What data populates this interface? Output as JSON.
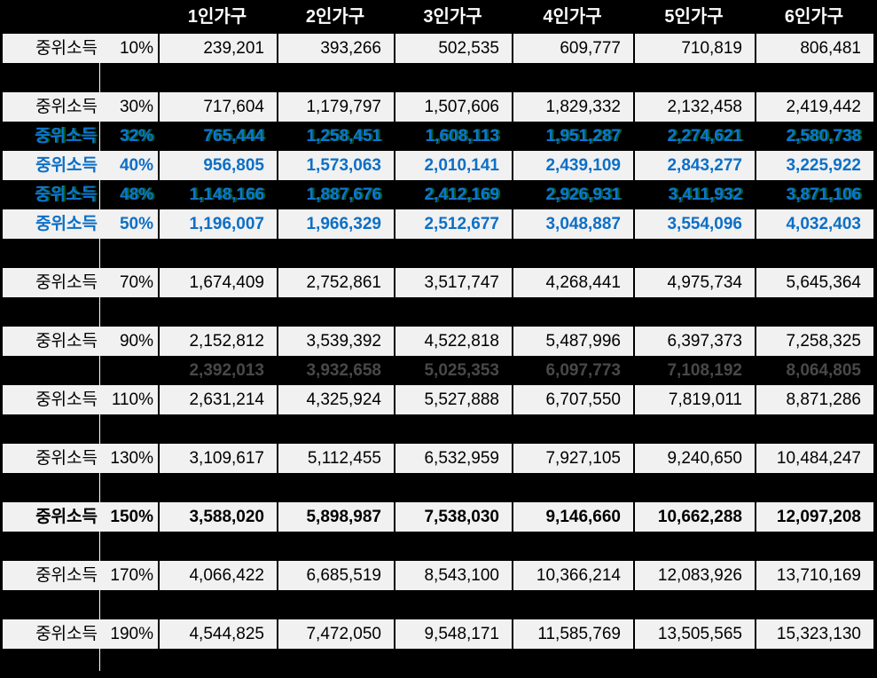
{
  "header": {
    "columns": [
      "1인가구",
      "2인가구",
      "3인가구",
      "4인가구",
      "5인가구",
      "6인가구"
    ]
  },
  "row_label": "중위소득",
  "rows": [
    {
      "kind": "data",
      "style": "normal",
      "label": "중위소득",
      "percent": "10%",
      "values": [
        "239,201",
        "393,266",
        "502,535",
        "609,777",
        "710,819",
        "806,481"
      ]
    },
    {
      "kind": "gap"
    },
    {
      "kind": "data",
      "style": "normal",
      "label": "중위소득",
      "percent": "30%",
      "values": [
        "717,604",
        "1,179,797",
        "1,507,606",
        "1,829,332",
        "2,132,458",
        "2,419,442"
      ]
    },
    {
      "kind": "data",
      "style": "highlight-dark",
      "label": "중위소득",
      "percent": "32%",
      "values": [
        "765,444",
        "1,258,451",
        "1,608,113",
        "1,951,287",
        "2,274,621",
        "2,580,738"
      ]
    },
    {
      "kind": "data",
      "style": "highlight-light",
      "label": "중위소득",
      "percent": "40%",
      "values": [
        "956,805",
        "1,573,063",
        "2,010,141",
        "2,439,109",
        "2,843,277",
        "3,225,922"
      ]
    },
    {
      "kind": "data",
      "style": "highlight-dark",
      "label": "중위소득",
      "percent": "48%",
      "values": [
        "1,148,166",
        "1,887,676",
        "2,412,169",
        "2,926,931",
        "3,411,932",
        "3,871,106"
      ]
    },
    {
      "kind": "data",
      "style": "highlight-light",
      "label": "중위소득",
      "percent": "50%",
      "values": [
        "1,196,007",
        "1,966,329",
        "2,512,677",
        "3,048,887",
        "3,554,096",
        "4,032,403"
      ]
    },
    {
      "kind": "gap"
    },
    {
      "kind": "data",
      "style": "normal",
      "label": "중위소득",
      "percent": "70%",
      "values": [
        "1,674,409",
        "2,752,861",
        "3,517,747",
        "4,268,441",
        "4,975,734",
        "5,645,364"
      ]
    },
    {
      "kind": "gap"
    },
    {
      "kind": "data",
      "style": "normal",
      "label": "중위소득",
      "percent": "90%",
      "values": [
        "2,152,812",
        "3,539,392",
        "4,522,818",
        "5,487,996",
        "6,397,373",
        "7,258,325"
      ]
    },
    {
      "kind": "data",
      "style": "muted-dark",
      "label": "",
      "percent": "",
      "values": [
        "2,392,013",
        "3,932,658",
        "5,025,353",
        "6,097,773",
        "7,108,192",
        "8,064,805"
      ]
    },
    {
      "kind": "data",
      "style": "normal",
      "label": "중위소득",
      "percent": "110%",
      "values": [
        "2,631,214",
        "4,325,924",
        "5,527,888",
        "6,707,550",
        "7,819,011",
        "8,871,286"
      ]
    },
    {
      "kind": "gap"
    },
    {
      "kind": "data",
      "style": "normal",
      "label": "중위소득",
      "percent": "130%",
      "values": [
        "3,109,617",
        "5,112,455",
        "6,532,959",
        "7,927,105",
        "9,240,650",
        "10,484,247"
      ]
    },
    {
      "kind": "gap"
    },
    {
      "kind": "data",
      "style": "bold",
      "label": "중위소득",
      "percent": "150%",
      "values": [
        "3,588,020",
        "5,898,987",
        "7,538,030",
        "9,146,660",
        "10,662,288",
        "12,097,208"
      ]
    },
    {
      "kind": "gap"
    },
    {
      "kind": "data",
      "style": "normal",
      "label": "중위소득",
      "percent": "170%",
      "values": [
        "4,066,422",
        "6,685,519",
        "8,543,100",
        "10,366,214",
        "12,083,926",
        "13,710,169"
      ]
    },
    {
      "kind": "gap"
    },
    {
      "kind": "data",
      "style": "normal",
      "label": "중위소득",
      "percent": "190%",
      "values": [
        "4,544,825",
        "7,472,050",
        "9,548,171",
        "11,585,769",
        "13,505,565",
        "15,323,130"
      ]
    }
  ],
  "colors": {
    "background": "#000000",
    "cell_background": "#f1f1f1",
    "text": "#000000",
    "header_text": "#ffffff",
    "accent_blue": "#0d6fc6",
    "muted_gray": "#484848"
  }
}
